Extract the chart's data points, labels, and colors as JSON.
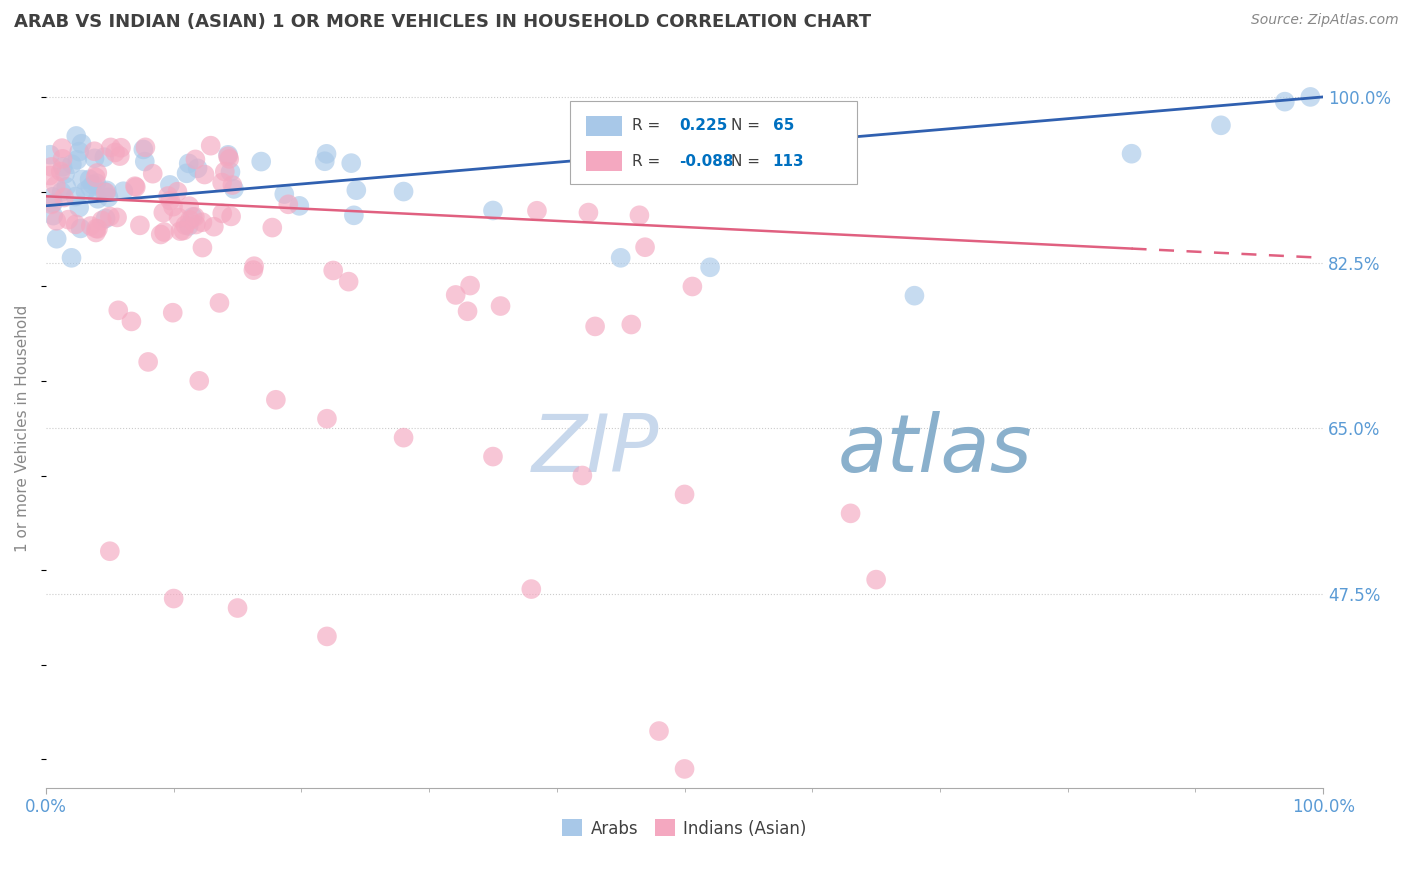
{
  "title": "ARAB VS INDIAN (ASIAN) 1 OR MORE VEHICLES IN HOUSEHOLD CORRELATION CHART",
  "source_text": "Source: ZipAtlas.com",
  "ylabel": "1 or more Vehicles in Household",
  "watermark_zip": "ZIP",
  "watermark_atlas": "atlas",
  "xlim": [
    0.0,
    100.0
  ],
  "ylim": [
    27.0,
    103.0
  ],
  "yticks": [
    47.5,
    65.0,
    82.5,
    100.0
  ],
  "ytick_labels": [
    "47.5%",
    "65.0%",
    "82.5%",
    "100.0%"
  ],
  "arab_R": 0.225,
  "arab_N": 65,
  "indian_R": -0.088,
  "indian_N": 113,
  "arab_color": "#a8c8e8",
  "indian_color": "#f4a8c0",
  "arab_line_color": "#3060b0",
  "indian_line_color": "#e06080",
  "title_color": "#404040",
  "axis_color": "#5b9bd5",
  "grid_color": "#cccccc",
  "background_color": "#ffffff",
  "legend_R_color": "#0070c0",
  "legend_N_color": "#000000",
  "arab_line_y0": 88.5,
  "arab_line_y1": 100.0,
  "indian_line_y0": 89.5,
  "indian_line_y1": 83.0,
  "indian_solid_end": 85.0
}
